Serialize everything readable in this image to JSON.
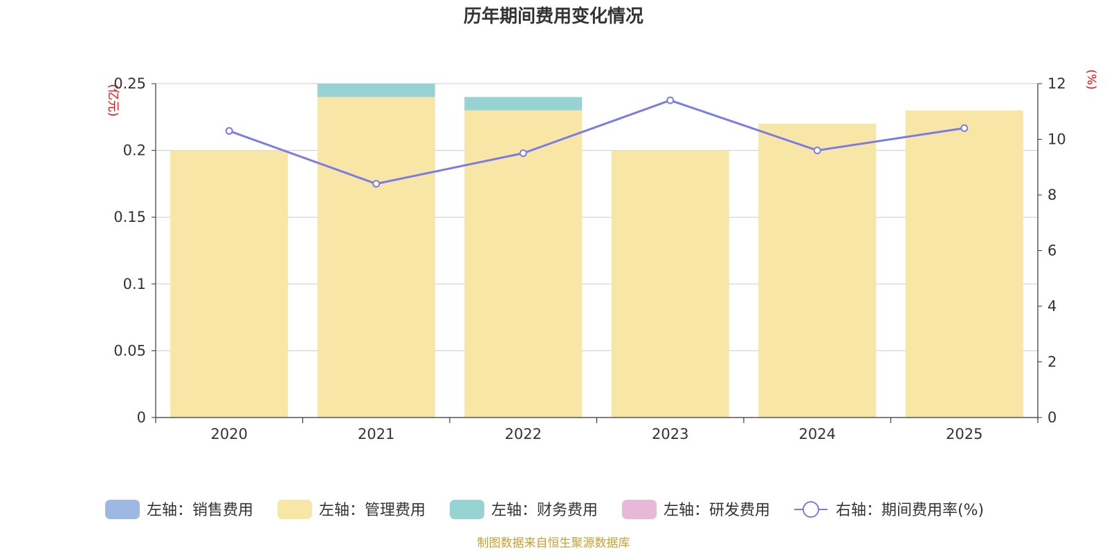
{
  "chart_data": {
    "type": "bar",
    "title": "历年期间费用变化情况",
    "categories": [
      "2020",
      "2021",
      "2022",
      "2023",
      "2024",
      "2025"
    ],
    "left_axis": {
      "unit": "(亿元)",
      "ylim": [
        0,
        0.25
      ],
      "ticks": [
        "0",
        "0.05",
        "0.1",
        "0.15",
        "0.2",
        "0.25"
      ]
    },
    "right_axis": {
      "unit": "(%)",
      "ylim": [
        0,
        12
      ],
      "ticks": [
        "0",
        "2",
        "4",
        "6",
        "8",
        "10",
        "12"
      ]
    },
    "series": [
      {
        "name": "左轴：销售费用",
        "type": "bar",
        "stack": "cost",
        "color": "#9db8e2",
        "values": [
          0,
          0,
          0,
          0,
          0,
          0
        ]
      },
      {
        "name": "左轴：管理费用",
        "type": "bar",
        "stack": "cost",
        "color": "#f7e6a6",
        "values": [
          0.2,
          0.24,
          0.23,
          0.2,
          0.22,
          0.23
        ]
      },
      {
        "name": "左轴：财务费用",
        "type": "bar",
        "stack": "cost",
        "color": "#98d3d3",
        "values": [
          0,
          0.01,
          0.01,
          0,
          0,
          0
        ]
      },
      {
        "name": "左轴：研发费用",
        "type": "bar",
        "stack": "cost",
        "color": "#e8b8d8",
        "values": [
          0,
          0,
          0,
          0,
          0,
          0
        ]
      },
      {
        "name": "右轴：期间费用率(%)",
        "type": "line",
        "axis": "right",
        "color": "#7b7be6",
        "values": [
          10.3,
          8.4,
          9.5,
          11.4,
          9.6,
          10.4
        ]
      }
    ],
    "legend_position": "bottom-center",
    "grid": true
  },
  "colors": {
    "axis_unit": "#ff0000",
    "footer": "#c8a032",
    "text": "#333333",
    "grid": "#cccccc"
  },
  "footer": "制图数据来自恒生聚源数据库"
}
